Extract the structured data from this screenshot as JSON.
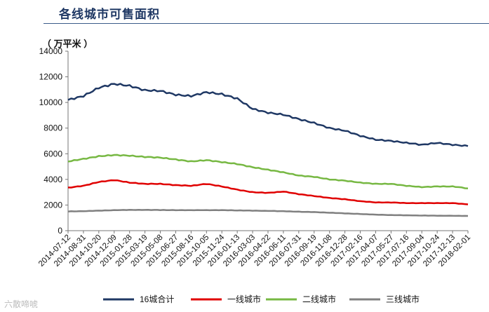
{
  "header": {
    "title": "各线城市可售面积"
  },
  "watermark": "六散啼唬",
  "chart_data": {
    "type": "line",
    "unit_label": "（ 万平米 ）",
    "ylim": [
      0,
      14000
    ],
    "yticks": [
      0,
      2000,
      4000,
      6000,
      8000,
      10000,
      12000,
      14000
    ],
    "grid": false,
    "legend_position": "bottom",
    "categories": [
      "2014-07-12",
      "2014-08-31",
      "2014-10-20",
      "2014-12-09",
      "2015-01-28",
      "2015-03-19",
      "2015-05-08",
      "2015-06-27",
      "2015-08-16",
      "2015-10-05",
      "2015-11-24",
      "2016-01-13",
      "2016-03-03",
      "2016-04-22",
      "2016-06-11",
      "2016-07-31",
      "2016-09-19",
      "2016-11-08",
      "2016-12-28",
      "2017-02-16",
      "2017-04-07",
      "2017-05-27",
      "2017-07-16",
      "2017-09-04",
      "2017-10-24",
      "2017-12-13",
      "2018-02-01"
    ],
    "series": [
      {
        "name": "16城合计",
        "color": "#1f3864",
        "values": [
          10200,
          10500,
          11150,
          11450,
          11300,
          10950,
          10900,
          10600,
          10500,
          10800,
          10650,
          10300,
          9500,
          9200,
          9050,
          8700,
          8400,
          8000,
          7800,
          7400,
          7100,
          7000,
          6850,
          6700,
          6850,
          6700,
          6600
        ]
      },
      {
        "name": "一线城市",
        "color": "#e00000",
        "values": [
          3350,
          3500,
          3800,
          3950,
          3750,
          3650,
          3650,
          3550,
          3500,
          3650,
          3450,
          3200,
          3000,
          2950,
          3050,
          2850,
          2700,
          2550,
          2450,
          2300,
          2200,
          2200,
          2150,
          2150,
          2150,
          2150,
          2050
        ]
      },
      {
        "name": "二线城市",
        "color": "#77b843",
        "values": [
          5400,
          5600,
          5800,
          5900,
          5850,
          5750,
          5700,
          5550,
          5400,
          5500,
          5350,
          5200,
          4950,
          4750,
          4550,
          4300,
          4200,
          4000,
          3900,
          3750,
          3650,
          3650,
          3500,
          3400,
          3450,
          3450,
          3300
        ]
      },
      {
        "name": "三线城市",
        "color": "#808080",
        "values": [
          1500,
          1520,
          1560,
          1600,
          1620,
          1620,
          1610,
          1600,
          1600,
          1600,
          1600,
          1580,
          1560,
          1540,
          1520,
          1480,
          1450,
          1400,
          1350,
          1300,
          1250,
          1220,
          1200,
          1180,
          1170,
          1160,
          1150
        ]
      }
    ]
  }
}
